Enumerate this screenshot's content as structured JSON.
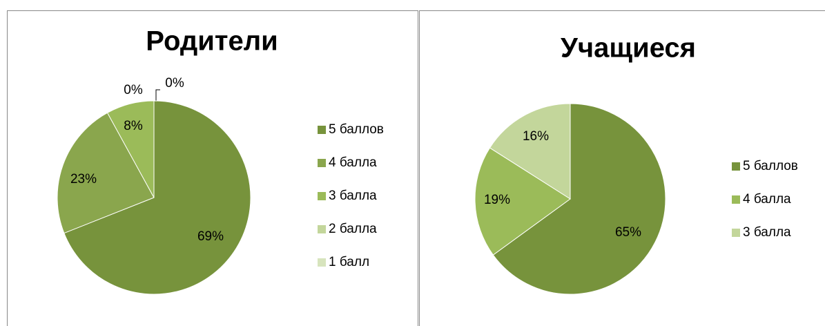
{
  "chart_data": [
    {
      "type": "pie",
      "title": "Родители",
      "categories": [
        "5 баллов",
        "4 балла",
        "3 балла",
        "2 балла",
        "1 балл"
      ],
      "values": [
        69,
        23,
        8,
        0,
        0
      ],
      "value_labels": [
        "69%",
        "23%",
        "8%",
        "0%",
        "0%"
      ],
      "colors": [
        "#77933c",
        "#8aa64d",
        "#9bbb59",
        "#c3d69b",
        "#d7e4bd"
      ],
      "legend": "right"
    },
    {
      "type": "pie",
      "title": "Учащиеся",
      "categories": [
        "5 баллов",
        "4 балла",
        "3 балла"
      ],
      "values": [
        65,
        19,
        16
      ],
      "value_labels": [
        "65%",
        "19%",
        "16%"
      ],
      "colors": [
        "#77933c",
        "#9bbb59",
        "#c3d69b"
      ],
      "legend": "right"
    }
  ]
}
